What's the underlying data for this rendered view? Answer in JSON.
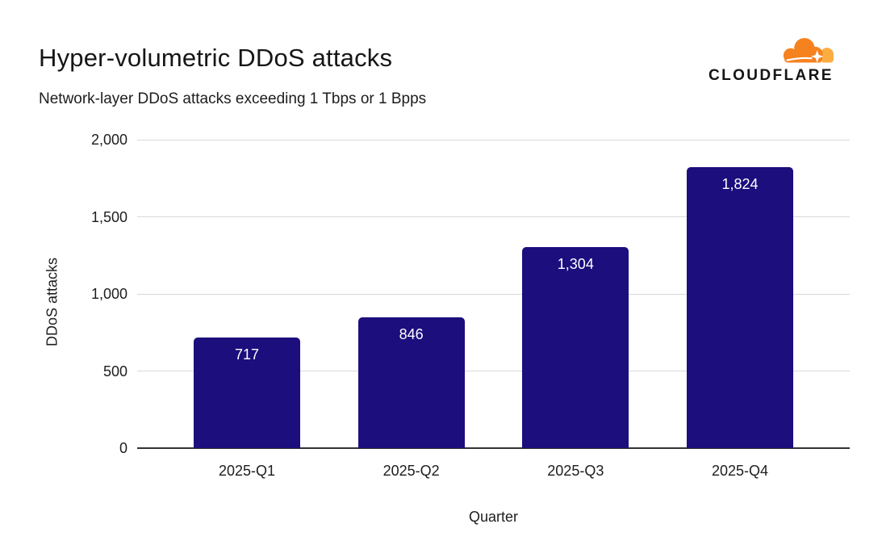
{
  "page": {
    "background": "#ffffff"
  },
  "header": {
    "title": "Hyper-volumetric DDoS attacks",
    "subtitle": "Network-layer DDoS attacks exceeding 1 Tbps or 1 Bpps"
  },
  "logo": {
    "wordmark": "CLOUDFLARE",
    "cloud_color": "#F6821F",
    "cloud_light_color": "#FBAD41",
    "wordmark_color": "#141414"
  },
  "chart_data": {
    "type": "bar",
    "title": "Hyper-volumetric DDoS attacks",
    "subtitle": "Network-layer DDoS attacks exceeding 1 Tbps or 1 Bpps",
    "categories": [
      "2025-Q1",
      "2025-Q2",
      "2025-Q3",
      "2025-Q4"
    ],
    "values": [
      717,
      846,
      1304,
      1824
    ],
    "value_labels": [
      "717",
      "846",
      "1,304",
      "1,824"
    ],
    "xlabel": "Quarter",
    "ylabel": "DDoS attacks",
    "ylim": [
      0,
      2000
    ],
    "yticks": [
      0,
      500,
      1000,
      1500,
      2000
    ],
    "ytick_labels": [
      "0",
      "500",
      "1,000",
      "1,500",
      "2,000"
    ],
    "grid": true,
    "legend": false,
    "bar_color": "#1C0E7D",
    "value_label_color": "#FFFFFF",
    "gridline_color": "#D9D9D9",
    "axis_line_color": "#333333"
  }
}
